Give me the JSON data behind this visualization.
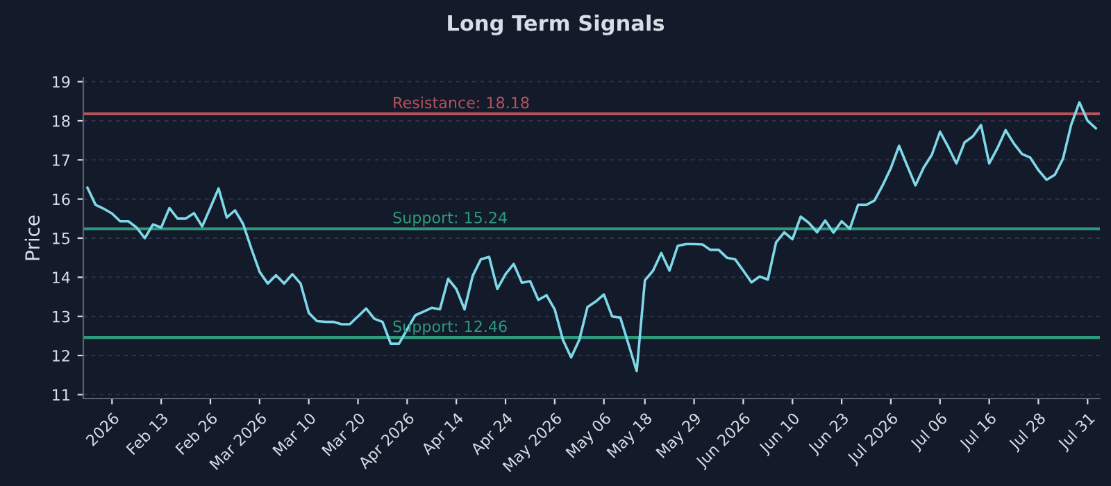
{
  "chart_data": {
    "type": "line",
    "title": "Long Term Signals",
    "ylabel": "Price",
    "categories": [
      null,
      null,
      null,
      "2026",
      null,
      null,
      null,
      null,
      null,
      "Feb 13",
      null,
      null,
      null,
      null,
      null,
      "Feb 26",
      null,
      null,
      null,
      null,
      null,
      "Mar 2026",
      null,
      null,
      null,
      null,
      null,
      "Mar 10",
      null,
      null,
      null,
      null,
      null,
      "Mar 20",
      null,
      null,
      null,
      null,
      null,
      "Apr 2026",
      null,
      null,
      null,
      null,
      null,
      "Apr 14",
      null,
      null,
      null,
      null,
      null,
      "Apr 24",
      null,
      null,
      null,
      null,
      null,
      "May 2026",
      null,
      null,
      null,
      null,
      null,
      "May 06",
      null,
      null,
      null,
      null,
      "May 18",
      null,
      null,
      null,
      null,
      null,
      "May 29",
      null,
      null,
      null,
      null,
      null,
      "Jun 2026",
      null,
      null,
      null,
      null,
      null,
      "Jun 10",
      null,
      null,
      null,
      null,
      null,
      "Jun 23",
      null,
      null,
      null,
      null,
      null,
      "Jul 2026",
      null,
      null,
      null,
      null,
      null,
      "Jul 06",
      null,
      null,
      null,
      null,
      null,
      "Jul 16",
      null,
      null,
      null,
      null,
      null,
      "Jul 28",
      null,
      null,
      null,
      null,
      null,
      "Jul 31",
      null
    ],
    "series": [
      {
        "color": "#7fd8e8",
        "values": [
          16.29,
          15.85,
          15.75,
          15.63,
          15.43,
          15.43,
          15.27,
          15.0,
          15.35,
          15.27,
          15.77,
          15.5,
          15.5,
          15.64,
          15.3,
          15.78,
          16.27,
          15.53,
          15.71,
          15.36,
          14.73,
          14.14,
          13.84,
          14.05,
          13.84,
          14.08,
          13.84,
          13.09,
          12.88,
          12.86,
          12.86,
          12.8,
          12.8,
          13.0,
          13.2,
          12.94,
          12.86,
          12.3,
          12.3,
          12.67,
          13.03,
          13.12,
          13.22,
          13.18,
          13.96,
          13.7,
          13.18,
          14.04,
          14.46,
          14.52,
          13.7,
          14.08,
          14.34,
          13.86,
          13.9,
          13.42,
          13.54,
          13.18,
          12.4,
          11.95,
          12.4,
          13.24,
          13.38,
          13.56,
          13.0,
          12.97,
          12.29,
          11.6,
          13.92,
          14.17,
          14.62,
          14.17,
          14.8,
          14.85,
          14.85,
          14.84,
          14.7,
          14.7,
          14.5,
          14.46,
          14.17,
          13.87,
          14.02,
          13.94,
          14.89,
          15.15,
          14.97,
          15.55,
          15.39,
          15.15,
          15.45,
          15.14,
          15.43,
          15.24,
          15.85,
          15.85,
          15.96,
          16.35,
          16.79,
          17.36,
          16.85,
          16.35,
          16.8,
          17.13,
          17.72,
          17.33,
          16.91,
          17.45,
          17.6,
          17.89,
          16.91,
          17.3,
          17.76,
          17.42,
          17.15,
          17.06,
          16.74,
          16.49,
          16.62,
          17.03,
          17.9,
          18.47,
          18.0,
          17.81
        ]
      }
    ],
    "ylim": [
      10.9,
      19.1
    ],
    "yticks": [
      11,
      12,
      13,
      14,
      15,
      16,
      17,
      18,
      19
    ],
    "grid": "y",
    "line_style": "solid",
    "marker": "none",
    "ref_lines": [
      {
        "axis": "y",
        "value": 18.18,
        "label": "Resistance: 18.18",
        "color": "#b5525c"
      },
      {
        "axis": "y",
        "value": 15.24,
        "label": "Support: 15.24",
        "color": "#2e9a7c"
      },
      {
        "axis": "y",
        "value": 12.46,
        "label": "Support: 12.46",
        "color": "#2e9a7c"
      }
    ]
  }
}
